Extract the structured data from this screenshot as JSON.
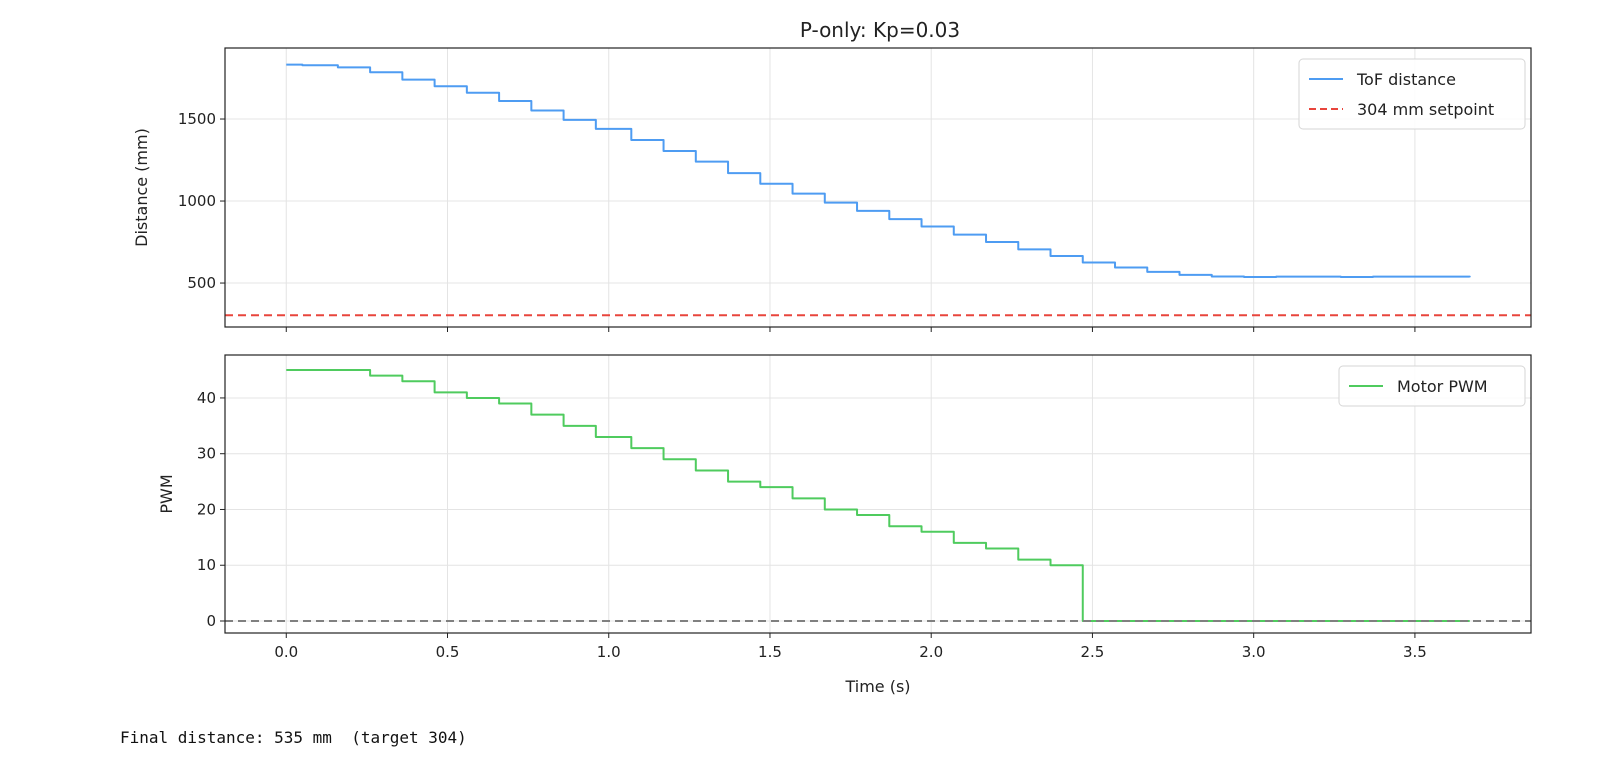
{
  "chart_data": [
    {
      "type": "line",
      "title": "P-only: Kp=0.03",
      "xlabel": "",
      "ylabel": "Distance (mm)",
      "xlim": [
        -0.19,
        3.86
      ],
      "ylim": [
        232,
        1933
      ],
      "xticks": [
        0.0,
        0.5,
        1.0,
        1.5,
        2.0,
        2.5,
        3.0,
        3.5
      ],
      "yticks": [
        500,
        1000,
        1500
      ],
      "ytick_labels": [
        "500",
        "1000",
        "1500"
      ],
      "grid": true,
      "legend_position": "top-right",
      "series": [
        {
          "name": "ToF distance",
          "color": "#4e9cf2",
          "style": "steps-post",
          "x": [
            0.0,
            0.05,
            0.16,
            0.26,
            0.36,
            0.46,
            0.56,
            0.66,
            0.76,
            0.86,
            0.96,
            1.07,
            1.17,
            1.27,
            1.37,
            1.47,
            1.57,
            1.67,
            1.77,
            1.87,
            1.97,
            2.07,
            2.17,
            2.27,
            2.37,
            2.47,
            2.57,
            2.67,
            2.77,
            2.87,
            2.97,
            3.07,
            3.27,
            3.37,
            3.67
          ],
          "y": [
            1832,
            1828,
            1815,
            1785,
            1740,
            1700,
            1660,
            1610,
            1552,
            1495,
            1440,
            1372,
            1305,
            1240,
            1170,
            1105,
            1045,
            990,
            940,
            890,
            845,
            795,
            750,
            705,
            665,
            625,
            595,
            568,
            550,
            540,
            537,
            539,
            537,
            539,
            535
          ]
        },
        {
          "name": "304 mm setpoint",
          "color": "#e8453c",
          "style": "dashed-hline",
          "y": 304
        }
      ]
    },
    {
      "type": "line",
      "title": "",
      "xlabel": "Time (s)",
      "ylabel": "PWM",
      "xlim": [
        -0.19,
        3.86
      ],
      "ylim": [
        -2.15,
        47.7
      ],
      "xticks": [
        0.0,
        0.5,
        1.0,
        1.5,
        2.0,
        2.5,
        3.0,
        3.5
      ],
      "xtick_labels": [
        "0.0",
        "0.5",
        "1.0",
        "1.5",
        "2.0",
        "2.5",
        "3.0",
        "3.5"
      ],
      "yticks": [
        0,
        10,
        20,
        30,
        40
      ],
      "ytick_labels": [
        "0",
        "10",
        "20",
        "30",
        "40"
      ],
      "grid": true,
      "legend_position": "top-right",
      "series": [
        {
          "name": "Motor PWM",
          "color": "#4fcb5e",
          "style": "steps-post",
          "x": [
            0.0,
            0.26,
            0.36,
            0.46,
            0.56,
            0.66,
            0.76,
            0.86,
            0.96,
            1.07,
            1.17,
            1.27,
            1.37,
            1.47,
            1.57,
            1.67,
            1.77,
            1.87,
            1.97,
            2.07,
            2.17,
            2.27,
            2.37,
            2.47,
            3.67
          ],
          "y": [
            45,
            44,
            43,
            41,
            40,
            39,
            37,
            35,
            33,
            31,
            29,
            27,
            25,
            24,
            22,
            20,
            19,
            17,
            16,
            14,
            13,
            11,
            10,
            0,
            0
          ]
        },
        {
          "color": "#808080",
          "style": "dashed-hline",
          "y": 0
        }
      ]
    }
  ],
  "output": {
    "text": "Final distance: 535 mm  (target 304)"
  }
}
